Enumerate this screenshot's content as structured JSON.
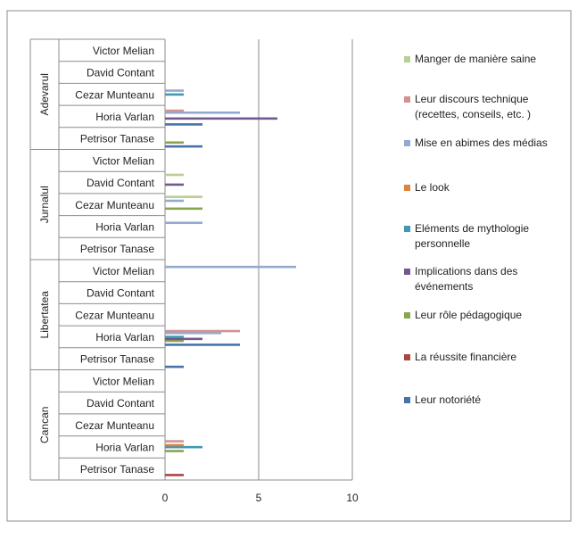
{
  "chart_data": {
    "type": "bar",
    "orientation": "horizontal",
    "groups": [
      {
        "name": "Adevarul",
        "categories": [
          "Victor Melian",
          "David Contant",
          "Cezar Munteanu",
          "Horia Varlan",
          "Petrisor Tanase"
        ]
      },
      {
        "name": "Jurnalul",
        "categories": [
          "Victor Melian",
          "David Contant",
          "Cezar Munteanu",
          "Horia Varlan",
          "Petrisor Tanase"
        ]
      },
      {
        "name": "Libertatea",
        "categories": [
          "Victor Melian",
          "David Contant",
          "Cezar Munteanu",
          "Horia Varlan",
          "Petrisor Tanase"
        ]
      },
      {
        "name": "Cancan",
        "categories": [
          "Victor Melian",
          "David Contant",
          "Cezar Munteanu",
          "Horia Varlan",
          "Petrisor Tanase"
        ]
      }
    ],
    "series": [
      {
        "name": "Leur notoriété",
        "color": "#4573A7",
        "values": [
          0,
          0,
          0,
          2,
          2,
          0,
          0,
          0,
          0,
          0,
          0,
          0,
          0,
          4,
          1,
          0,
          0,
          0,
          0,
          0
        ]
      },
      {
        "name": "La réussite financière",
        "color": "#AA4644",
        "values": [
          0,
          0,
          0,
          0,
          0,
          0,
          0,
          0,
          0,
          0,
          0,
          0,
          0,
          0,
          0,
          0,
          0,
          0,
          0,
          1
        ]
      },
      {
        "name": "Leur rôle pédagogique",
        "color": "#89A54E",
        "values": [
          0,
          0,
          0,
          0,
          1,
          0,
          0,
          2,
          0,
          0,
          0,
          0,
          0,
          1,
          0,
          0,
          0,
          0,
          1,
          0
        ]
      },
      {
        "name": "Implications dans des événements",
        "color": "#71588F",
        "values": [
          0,
          0,
          0,
          6,
          0,
          0,
          1,
          0,
          0,
          0,
          0,
          0,
          0,
          2,
          0,
          0,
          0,
          0,
          0,
          0
        ]
      },
      {
        "name": "Eléments de mythologie personnelle",
        "color": "#4198AF",
        "values": [
          0,
          0,
          1,
          0,
          0,
          0,
          0,
          0,
          0,
          0,
          0,
          0,
          0,
          1,
          0,
          0,
          0,
          0,
          2,
          0
        ]
      },
      {
        "name": "Le look",
        "color": "#DB843D",
        "values": [
          0,
          0,
          0,
          0,
          0,
          0,
          0,
          0,
          0,
          0,
          0,
          0,
          0,
          0,
          0,
          0,
          0,
          0,
          1,
          0
        ]
      },
      {
        "name": "Mise en abimes des médias",
        "color": "#93A9CF",
        "values": [
          0,
          0,
          1,
          4,
          0,
          0,
          0,
          1,
          2,
          0,
          7,
          0,
          0,
          3,
          0,
          0,
          0,
          0,
          0,
          0
        ]
      },
      {
        "name": "Leur discours technique (recettes, conseils, etc. )",
        "color": "#D19392",
        "values": [
          0,
          0,
          0,
          1,
          0,
          0,
          0,
          0,
          0,
          0,
          0,
          0,
          0,
          4,
          0,
          0,
          0,
          0,
          1,
          0
        ]
      },
      {
        "name": "Manger de manière saine",
        "color": "#B9CD96",
        "values": [
          0,
          0,
          0,
          0,
          0,
          0,
          1,
          2,
          0,
          0,
          0,
          0,
          0,
          0,
          0,
          0,
          0,
          0,
          0,
          0
        ]
      }
    ],
    "xlim": [
      0,
      10
    ],
    "xticks": [
      0,
      5,
      10
    ],
    "xticklabels": [
      "0",
      "5",
      "10"
    ],
    "title": "",
    "xlabel": "",
    "ylabel": "",
    "grid": "vertical",
    "legend_position": "right",
    "legend_entries": [
      {
        "label": "Manger de manière saine",
        "color": "#B9CD96"
      },
      {
        "label": "Leur discours technique (recettes, conseils, etc. )",
        "color": "#D19392",
        "lines": [
          "Leur discours technique",
          "(recettes, conseils, etc. )"
        ]
      },
      {
        "label": "Mise en abimes des médias",
        "color": "#93A9CF"
      },
      {
        "label": "Le look",
        "color": "#DB843D"
      },
      {
        "label": "Eléments de mythologie personnelle",
        "color": "#4198AF",
        "lines": [
          "Eléments de mythologie",
          "personnelle"
        ]
      },
      {
        "label": "Implications dans des événements",
        "color": "#71588F",
        "lines": [
          "Implications dans des",
          "événements"
        ]
      },
      {
        "label": "Leur rôle pédagogique",
        "color": "#89A54E"
      },
      {
        "label": "La réussite financière",
        "color": "#AA4644"
      },
      {
        "label": "Leur notoriété",
        "color": "#4573A7"
      }
    ]
  }
}
